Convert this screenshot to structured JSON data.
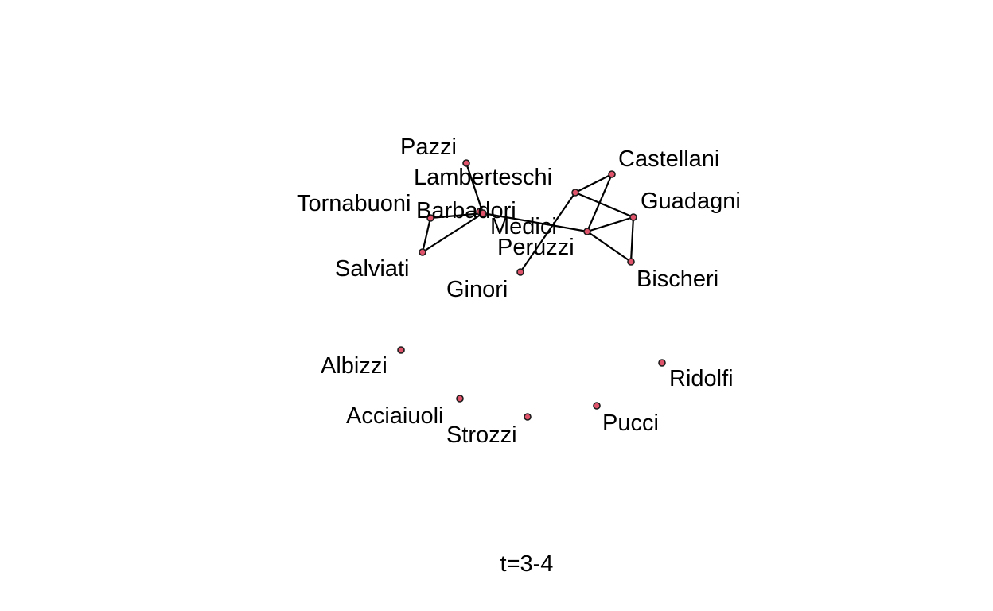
{
  "caption": "t=3-4",
  "colors": {
    "node_fill": "#DF536B",
    "node_stroke": "#1a1a1a",
    "edge": "#000000",
    "label": "#000000",
    "background": "#ffffff"
  },
  "nodes": [
    {
      "id": "Pazzi",
      "label": "Pazzi"
    },
    {
      "id": "Lamberteschi",
      "label": "Lamberteschi"
    },
    {
      "id": "Tornabuoni",
      "label": "Tornabuoni"
    },
    {
      "id": "Barbadori",
      "label": "Barbadori"
    },
    {
      "id": "Salviati",
      "label": "Salviati"
    },
    {
      "id": "Medici",
      "label": "Medici"
    },
    {
      "id": "Peruzzi",
      "label": "Peruzzi"
    },
    {
      "id": "Ginori",
      "label": "Ginori"
    },
    {
      "id": "Castellani",
      "label": "Castellani"
    },
    {
      "id": "Guadagni",
      "label": "Guadagni"
    },
    {
      "id": "Bischeri",
      "label": "Bischeri"
    },
    {
      "id": "Albizzi",
      "label": "Albizzi"
    },
    {
      "id": "Ridolfi",
      "label": "Ridolfi"
    },
    {
      "id": "Acciaiuoli",
      "label": "Acciaiuoli"
    },
    {
      "id": "Strozzi",
      "label": "Strozzi"
    },
    {
      "id": "Pucci",
      "label": "Pucci"
    }
  ],
  "edges": [
    [
      "Pazzi",
      "Barbadori"
    ],
    [
      "Tornabuoni",
      "Barbadori"
    ],
    [
      "Tornabuoni",
      "Salviati"
    ],
    [
      "Salviati",
      "Barbadori"
    ],
    [
      "Barbadori",
      "Peruzzi"
    ],
    [
      "Ginori",
      "Medici"
    ],
    [
      "Medici",
      "Castellani"
    ],
    [
      "Medici",
      "Guadagni"
    ],
    [
      "Castellani",
      "Peruzzi"
    ],
    [
      "Peruzzi",
      "Guadagni"
    ],
    [
      "Peruzzi",
      "Bischeri"
    ],
    [
      "Guadagni",
      "Bischeri"
    ]
  ]
}
